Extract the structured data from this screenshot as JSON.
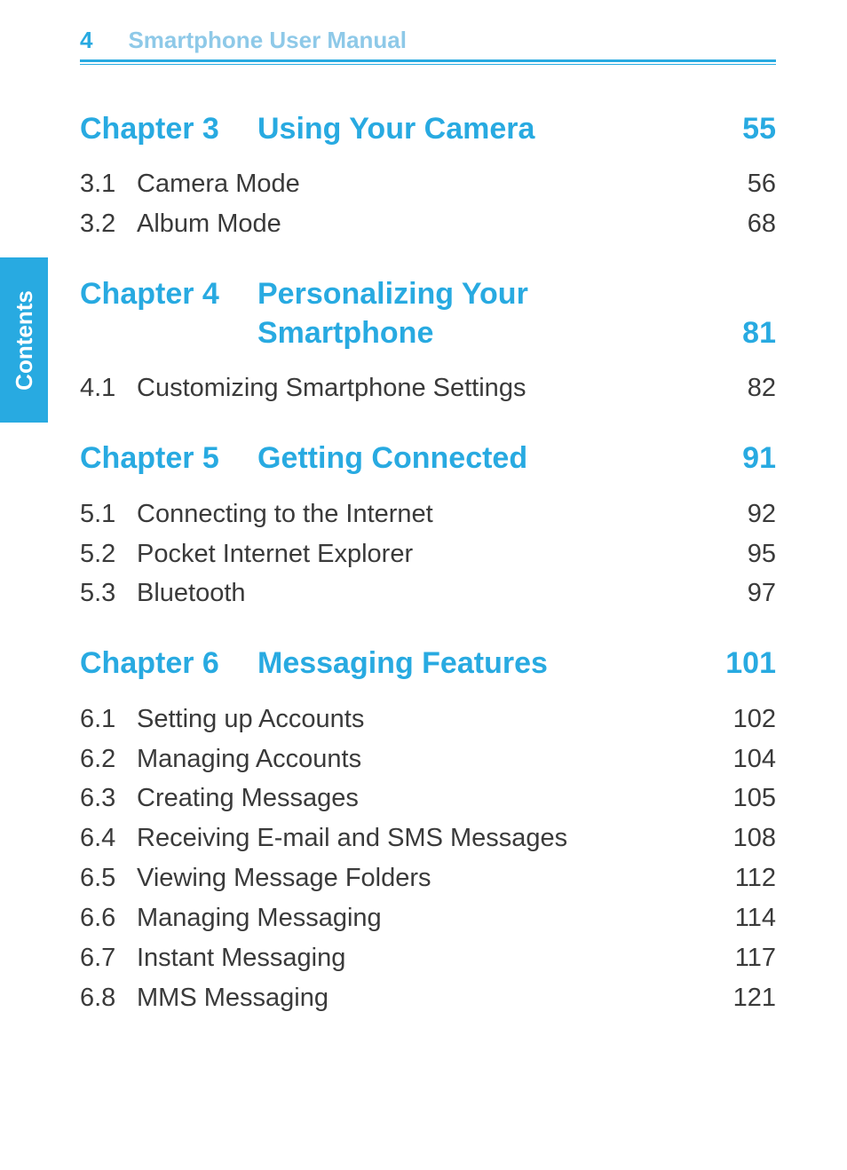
{
  "colors": {
    "accent": "#28aae1",
    "header_title": "#8ec9e8",
    "body_text": "#3a3a3a",
    "background": "#ffffff",
    "tab_bg": "#28aae1",
    "tab_text": "#ffffff"
  },
  "typography": {
    "chapter_fontsize_pt": 26,
    "section_fontsize_pt": 22,
    "header_fontsize_pt": 20,
    "font_family": "Tahoma"
  },
  "header": {
    "page_number": "4",
    "title": "Smartphone User Manual"
  },
  "side_tab": {
    "label": "Contents"
  },
  "toc": {
    "chapters": [
      {
        "label": "Chapter 3",
        "title": "Using Your Camera",
        "page": "55",
        "sections": [
          {
            "num": "3.1",
            "title": "Camera Mode",
            "page": "56"
          },
          {
            "num": "3.2",
            "title": "Album Mode",
            "page": "68"
          }
        ]
      },
      {
        "label": "Chapter 4",
        "title": "Personalizing Your Smartphone",
        "page": "81",
        "sections": [
          {
            "num": "4.1",
            "title": "Customizing Smartphone Settings",
            "page": "82"
          }
        ]
      },
      {
        "label": "Chapter 5",
        "title": "Getting Connected",
        "page": "91",
        "sections": [
          {
            "num": "5.1",
            "title": "Connecting to the Internet",
            "page": "92"
          },
          {
            "num": "5.2",
            "title": "Pocket Internet Explorer",
            "page": "95"
          },
          {
            "num": "5.3",
            "title": "Bluetooth",
            "page": "97"
          }
        ]
      },
      {
        "label": "Chapter 6",
        "title": "Messaging Features",
        "page": "101",
        "sections": [
          {
            "num": "6.1",
            "title": "Setting up Accounts",
            "page": "102"
          },
          {
            "num": "6.2",
            "title": "Managing Accounts",
            "page": "104"
          },
          {
            "num": "6.3",
            "title": "Creating Messages",
            "page": "105"
          },
          {
            "num": "6.4",
            "title": "Receiving E-mail and SMS Messages",
            "page": "108"
          },
          {
            "num": "6.5",
            "title": "Viewing Message Folders",
            "page": "112"
          },
          {
            "num": "6.6",
            "title": "Managing Messaging",
            "page": "114"
          },
          {
            "num": "6.7",
            "title": "Instant Messaging",
            "page": "117"
          },
          {
            "num": "6.8",
            "title": "MMS Messaging",
            "page": "121"
          }
        ]
      }
    ]
  }
}
